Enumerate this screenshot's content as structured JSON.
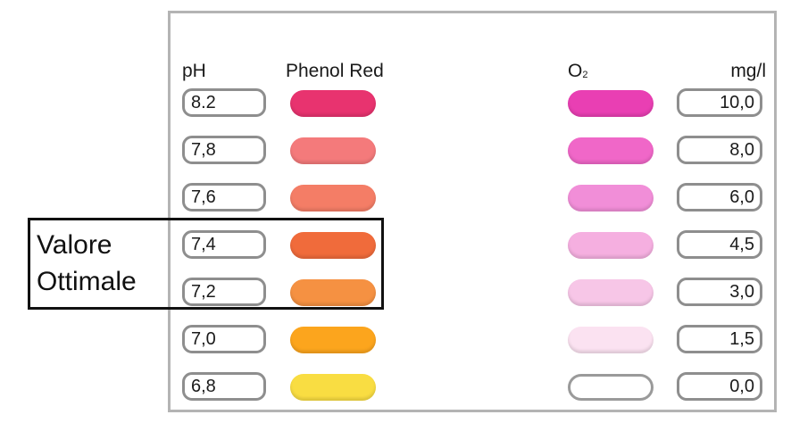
{
  "headers": {
    "ph": "pH",
    "phenol_red": "Phenol Red",
    "o2_base": "O",
    "o2_sub": "2",
    "mgl": "mg/l"
  },
  "annotation": {
    "line1": "Valore",
    "line2": "Ottimale"
  },
  "rows": [
    {
      "ph": "8.2",
      "ph_color": "#e8336f",
      "o2_color": "#e93fb3",
      "mgl": "10,0"
    },
    {
      "ph": "7,8",
      "ph_color": "#f47a7b",
      "o2_color": "#f067c8",
      "mgl": "8,0"
    },
    {
      "ph": "7,6",
      "ph_color": "#f47d66",
      "o2_color": "#f18ed8",
      "mgl": "6,0"
    },
    {
      "ph": "7,4",
      "ph_color": "#f06b3b",
      "o2_color": "#f5afe0",
      "mgl": "4,5"
    },
    {
      "ph": "7,2",
      "ph_color": "#f59142",
      "o2_color": "#f7c6e7",
      "mgl": "3,0"
    },
    {
      "ph": "7,0",
      "ph_color": "#fca51d",
      "o2_color": "#fbe2f1",
      "mgl": "1,5"
    },
    {
      "ph": "6,8",
      "ph_color": "#f9dd42",
      "o2_color": "#ffffff",
      "mgl": "0,0"
    }
  ]
}
